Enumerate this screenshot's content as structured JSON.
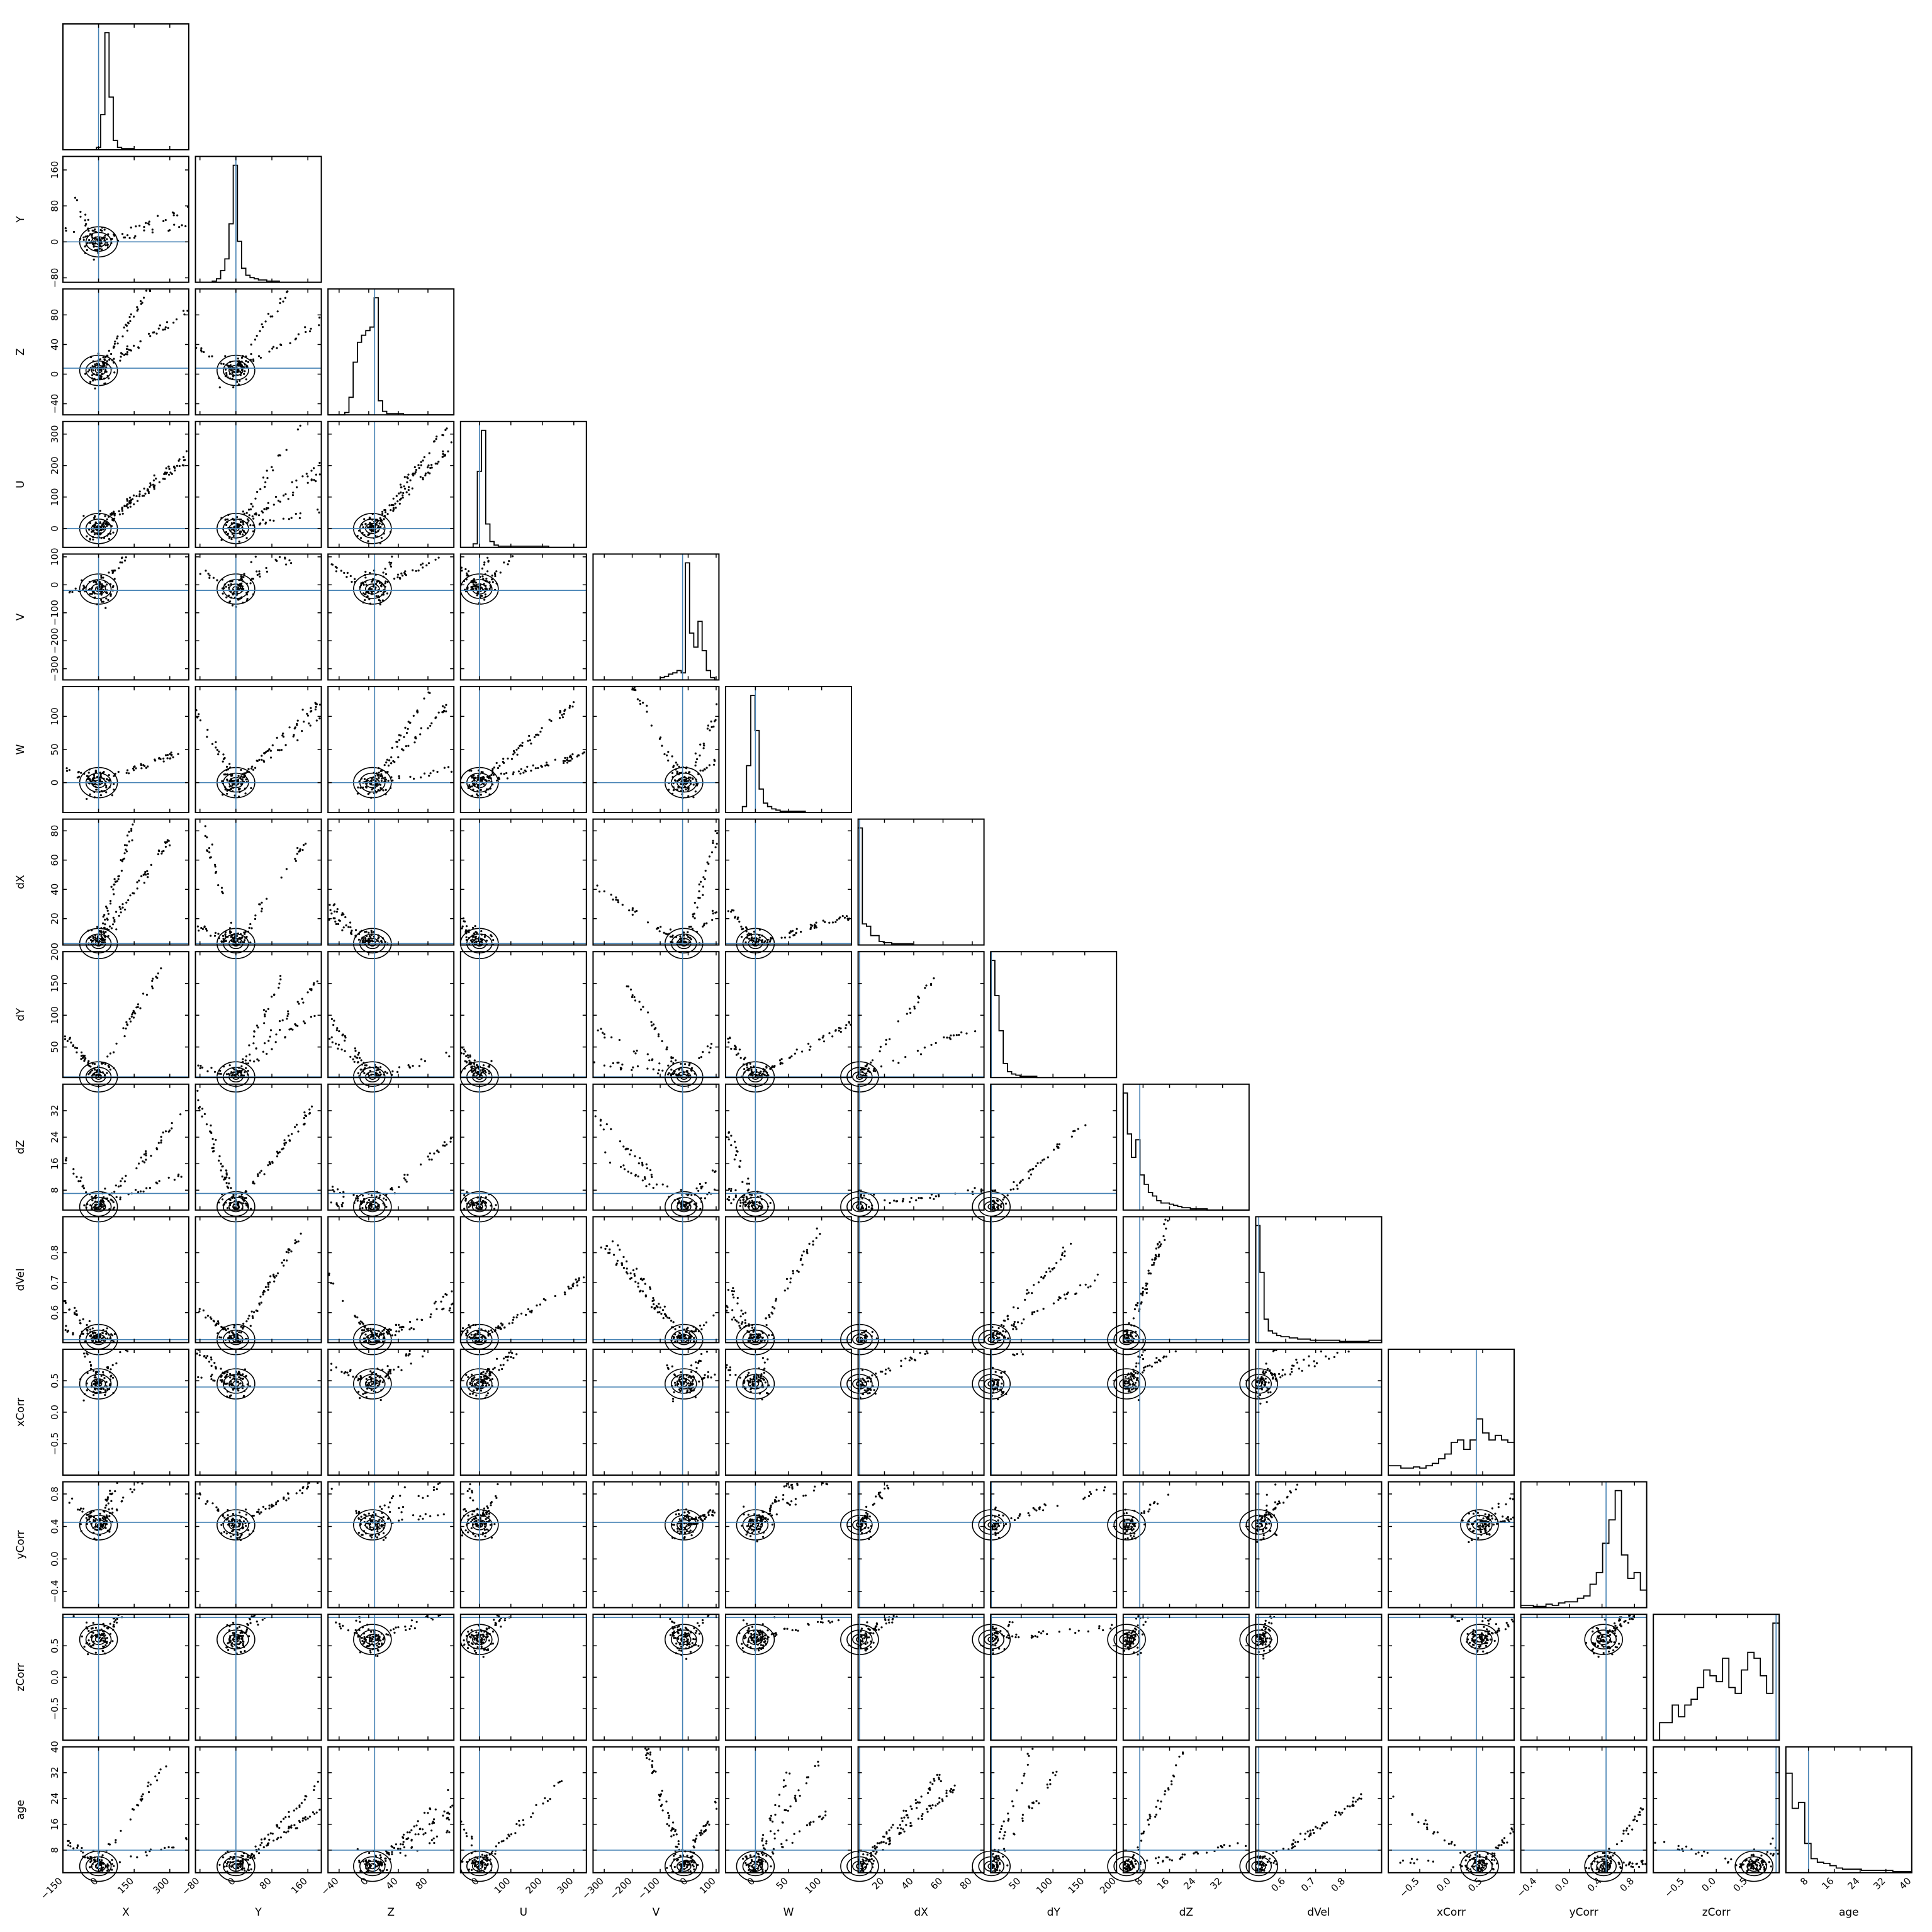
{
  "chart_data": {
    "type": "corner",
    "title": "",
    "grid": false,
    "parameters": [
      {
        "name": "X",
        "range": [
          -150,
          380
        ],
        "ticks": [
          -150,
          0,
          150,
          300
        ],
        "tick_labels": [
          "−150",
          "0",
          "150",
          "300"
        ],
        "truth": 0,
        "mode": 0
      },
      {
        "name": "Y",
        "range": [
          -90,
          190
        ],
        "ticks": [
          -80,
          0,
          80,
          160
        ],
        "tick_labels": [
          "−80",
          "0",
          "80",
          "160"
        ],
        "truth": 0,
        "mode": 0
      },
      {
        "name": "Z",
        "range": [
          -55,
          115
        ],
        "ticks": [
          -40,
          0,
          40,
          80
        ],
        "tick_labels": [
          "−40",
          "0",
          "40",
          "80"
        ],
        "truth": 8,
        "mode": 5
      },
      {
        "name": "U",
        "range": [
          -60,
          340
        ],
        "ticks": [
          0,
          100,
          200,
          300
        ],
        "tick_labels": [
          "0",
          "100",
          "200",
          "300"
        ],
        "truth": 0,
        "mode": 0
      },
      {
        "name": "V",
        "range": [
          -340,
          110
        ],
        "ticks": [
          -300,
          -200,
          -100,
          0,
          100
        ],
        "tick_labels": [
          "−300",
          "−200",
          "−100",
          "0",
          "100"
        ],
        "truth": -20,
        "mode": -15
      },
      {
        "name": "W",
        "range": [
          -45,
          145
        ],
        "ticks": [
          0,
          50,
          100
        ],
        "tick_labels": [
          "0",
          "50",
          "100"
        ],
        "truth": 0,
        "mode": 0
      },
      {
        "name": "dX",
        "range": [
          2,
          88
        ],
        "ticks": [
          20,
          40,
          60,
          80
        ],
        "tick_labels": [
          "20",
          "40",
          "60",
          "80"
        ],
        "truth": 3,
        "mode": 3
      },
      {
        "name": "dY",
        "range": [
          2,
          200
        ],
        "ticks": [
          50,
          100,
          150,
          200
        ],
        "tick_labels": [
          "50",
          "100",
          "150",
          "200"
        ],
        "truth": 3,
        "mode": 3
      },
      {
        "name": "dZ",
        "range": [
          2,
          40
        ],
        "ticks": [
          8,
          16,
          24,
          32
        ],
        "tick_labels": [
          "8",
          "16",
          "24",
          "32"
        ],
        "truth": 7,
        "mode": 3
      },
      {
        "name": "dVel",
        "range": [
          0.5,
          0.92
        ],
        "ticks": [
          0.6,
          0.7,
          0.8
        ],
        "tick_labels": [
          "0.6",
          "0.7",
          "0.8"
        ],
        "truth": 0.51,
        "mode": 0.51
      },
      {
        "name": "xCorr",
        "range": [
          -1,
          1
        ],
        "ticks": [
          -0.5,
          0,
          0.5
        ],
        "tick_labels": [
          "−0.5",
          "0.0",
          "0.5"
        ],
        "truth": 0.4,
        "mode": 0.45
      },
      {
        "name": "yCorr",
        "range": [
          -0.6,
          0.95
        ],
        "ticks": [
          -0.4,
          0,
          0.4,
          0.8
        ],
        "tick_labels": [
          "−0.4",
          "0.0",
          "0.4",
          "0.8"
        ],
        "truth": 0.45,
        "mode": 0.42
      },
      {
        "name": "zCorr",
        "range": [
          -1,
          1
        ],
        "ticks": [
          -0.5,
          0,
          0.5
        ],
        "tick_labels": [
          "−0.5",
          "0.0",
          "0.5"
        ],
        "truth": 0.95,
        "mode": 0.6
      },
      {
        "name": "age",
        "range": [
          1,
          40
        ],
        "ticks": [
          8,
          16,
          24,
          32,
          40
        ],
        "tick_labels": [
          "8",
          "16",
          "24",
          "32",
          "40"
        ],
        "truth": 8,
        "mode": 3
      }
    ],
    "histograms": [
      [
        0,
        0,
        0,
        0,
        0,
        0,
        0,
        0,
        0.02,
        0.3,
        1,
        0.45,
        0.08,
        0.02,
        0.01,
        0.01,
        0.01,
        0,
        0,
        0,
        0,
        0,
        0,
        0,
        0,
        0,
        0,
        0,
        0,
        0
      ],
      [
        0,
        0,
        0,
        0,
        0.01,
        0.03,
        0.1,
        0.2,
        0.5,
        1,
        0.35,
        0.12,
        0.06,
        0.04,
        0.03,
        0.02,
        0.02,
        0.01,
        0.01,
        0.01,
        0,
        0,
        0,
        0,
        0,
        0,
        0,
        0,
        0,
        0
      ],
      [
        0,
        0,
        0,
        0,
        0.02,
        0.15,
        0.45,
        0.62,
        0.68,
        0.72,
        0.75,
        1,
        0.12,
        0.03,
        0.01,
        0.01,
        0.01,
        0.01,
        0,
        0,
        0,
        0,
        0,
        0,
        0,
        0,
        0,
        0,
        0,
        0
      ],
      [
        0,
        0,
        0,
        0.03,
        0.65,
        1,
        0.2,
        0.05,
        0.02,
        0.01,
        0.01,
        0.01,
        0.01,
        0.01,
        0.01,
        0.01,
        0.01,
        0.01,
        0.01,
        0.01,
        0.01,
        0,
        0,
        0,
        0,
        0,
        0,
        0,
        0,
        0
      ],
      [
        0,
        0,
        0,
        0,
        0,
        0,
        0,
        0,
        0,
        0,
        0,
        0,
        0,
        0,
        0,
        0,
        0.02,
        0.03,
        0.05,
        0.06,
        0.08,
        0.06,
        1,
        0.4,
        0.28,
        0.5,
        0.25,
        0.08,
        0.02,
        0
      ],
      [
        0,
        0,
        0,
        0,
        0.05,
        0.4,
        1,
        0.7,
        0.2,
        0.08,
        0.05,
        0.03,
        0.02,
        0.01,
        0.01,
        0.01,
        0.01,
        0.01,
        0.01,
        0,
        0,
        0,
        0,
        0,
        0,
        0,
        0,
        0,
        0,
        0
      ],
      [
        1,
        0.18,
        0.16,
        0.08,
        0.08,
        0.03,
        0.02,
        0.02,
        0.01,
        0.01,
        0.01,
        0.01,
        0.01,
        0,
        0,
        0,
        0,
        0,
        0,
        0,
        0,
        0,
        0,
        0,
        0,
        0,
        0,
        0,
        0,
        0
      ],
      [
        1,
        0.7,
        0.4,
        0.12,
        0.05,
        0.03,
        0.02,
        0.01,
        0.01,
        0.01,
        0.01,
        0,
        0,
        0,
        0,
        0,
        0,
        0,
        0,
        0,
        0,
        0,
        0,
        0,
        0,
        0,
        0,
        0,
        0,
        0
      ],
      [
        1,
        0.65,
        0.45,
        0.6,
        0.3,
        0.22,
        0.15,
        0.12,
        0.08,
        0.06,
        0.06,
        0.05,
        0.04,
        0.03,
        0.02,
        0.02,
        0.01,
        0.01,
        0.01,
        0.01,
        0,
        0,
        0,
        0,
        0,
        0,
        0,
        0,
        0,
        0
      ],
      [
        1,
        0.6,
        0.2,
        0.1,
        0.08,
        0.06,
        0.05,
        0.05,
        0.04,
        0.04,
        0.03,
        0.03,
        0.03,
        0.02,
        0.02,
        0.02,
        0.02,
        0.02,
        0.02,
        0.02,
        0.01,
        0.01,
        0.01,
        0.01,
        0.01,
        0.01,
        0.01,
        0.02,
        0.02,
        0.02
      ],
      [
        0.08,
        0.08,
        0.06,
        0.06,
        0.07,
        0.06,
        0.08,
        0.1,
        0.14,
        0.18,
        0.28,
        0.3,
        0.22,
        0.3,
        0.48,
        0.36,
        0.3,
        0.34,
        0.3,
        0.28
      ],
      [
        0.02,
        0.02,
        0.01,
        0.01,
        0.03,
        0.02,
        0.04,
        0.05,
        0.05,
        0.08,
        0.1,
        0.2,
        0.3,
        0.55,
        0.75,
        1,
        0.45,
        0.25,
        0.3,
        0.15
      ],
      [
        0,
        0.15,
        0.15,
        0.3,
        0.2,
        0.3,
        0.35,
        0.45,
        0.6,
        0.55,
        0.5,
        0.7,
        0.45,
        0.4,
        0.6,
        0.75,
        0.7,
        0.55,
        0.4,
        1
      ],
      [
        0.85,
        0.55,
        0.6,
        0.25,
        0.12,
        0.09,
        0.08,
        0.06,
        0.04,
        0.03,
        0.03,
        0.03,
        0.02,
        0.02,
        0.02,
        0.02,
        0.02,
        0.01,
        0.01,
        0.01
      ]
    ]
  }
}
